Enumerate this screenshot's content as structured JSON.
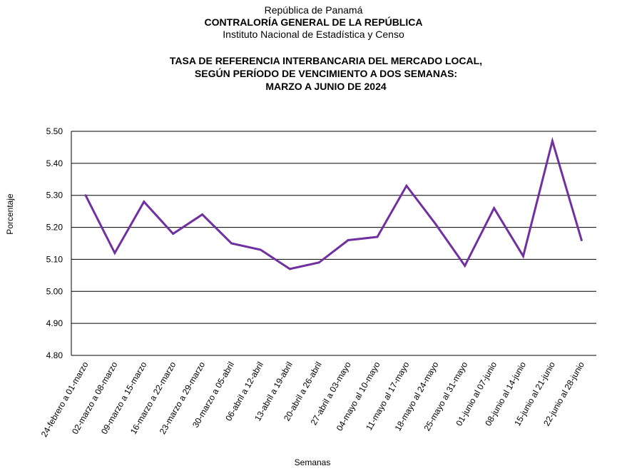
{
  "header": {
    "line1": "República de Panamá",
    "line2": "CONTRALORÍA GENERAL DE LA REPÚBLICA",
    "line3": "Instituto Nacional de Estadística y Censo"
  },
  "chart_data": {
    "type": "line",
    "title_lines": [
      "TASA DE REFERENCIA INTERBANCARIA DEL MERCADO LOCAL,",
      "SEGÚN PERÍODO DE VENCIMIENTO A DOS SEMANAS:",
      "MARZO  A JUNIO DE 2024"
    ],
    "xlabel": "Semanas",
    "ylabel": "Porcentaje",
    "ylim": [
      4.8,
      5.5
    ],
    "yticks": [
      "4.80",
      "4.90",
      "5.00",
      "5.10",
      "5.20",
      "5.30",
      "5.40",
      "5.50"
    ],
    "grid": true,
    "line_color": "#7030a0",
    "categories": [
      "24-febrero a 01-marzo",
      "02-marzo a 08-marzo",
      "09-marzo a 15-marzo",
      "16-marzo a 22-marzo",
      "23-marzo a 29-marzo",
      "30-marzo a 05-abril",
      "06-abril a 12-abril",
      "13-abril a 19-abril",
      "20-abril a 26-abril",
      "27-abril a 03-mayo",
      "04-mayo al 10-mayo",
      "11-mayo al 17-mayo",
      "18-mayo al 24-mayo",
      "25-mayo al 31-mayo",
      "01-junio al 07-junio",
      "08-junio al 14-junio",
      "15-junio al 21-junio",
      "22-junio al 28-junio"
    ],
    "values": [
      5.3,
      5.12,
      5.28,
      5.18,
      5.24,
      5.15,
      5.13,
      5.07,
      5.09,
      5.16,
      5.17,
      5.33,
      5.21,
      5.08,
      5.26,
      5.11,
      5.47,
      5.16
    ]
  }
}
